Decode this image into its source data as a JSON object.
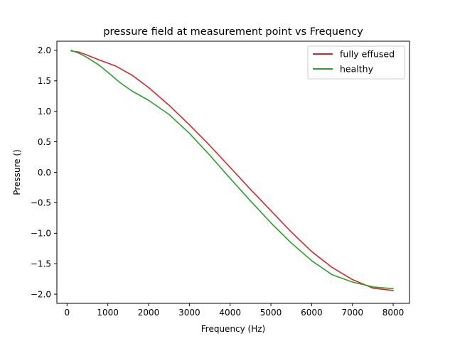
{
  "chart_data": {
    "type": "line",
    "title": "pressure field at measurement point vs Frequency",
    "xlabel": "Frequency (Hz)",
    "ylabel": "Pressure ()",
    "xlim": [
      -250,
      8400
    ],
    "ylim": [
      -2.15,
      2.15
    ],
    "xticks": [
      0,
      1000,
      2000,
      3000,
      4000,
      5000,
      6000,
      7000,
      8000
    ],
    "yticks": [
      -2.0,
      -1.5,
      -1.0,
      -0.5,
      0.0,
      0.5,
      1.0,
      1.5,
      2.0
    ],
    "xtick_labels": [
      "0",
      "1000",
      "2000",
      "3000",
      "4000",
      "5000",
      "6000",
      "7000",
      "8000"
    ],
    "ytick_labels": [
      "−2.0",
      "−1.5",
      "−1.0",
      "−0.5",
      "0.0",
      "0.5",
      "1.0",
      "1.5",
      "2.0"
    ],
    "grid": false,
    "legend_position": "top-right",
    "series": [
      {
        "name": "fully effused",
        "color": "#d62728",
        "x": [
          100,
          300,
          500,
          800,
          1200,
          1600,
          2000,
          2500,
          3000,
          3500,
          4000,
          4500,
          5000,
          5500,
          6000,
          6500,
          7000,
          7500,
          8000
        ],
        "y": [
          1.99,
          1.97,
          1.92,
          1.84,
          1.74,
          1.59,
          1.39,
          1.1,
          0.78,
          0.44,
          0.08,
          -0.28,
          -0.63,
          -0.98,
          -1.3,
          -1.56,
          -1.76,
          -1.9,
          -1.94
        ]
      },
      {
        "name": "healthy",
        "color": "#2ca02c",
        "x": [
          100,
          300,
          500,
          800,
          1000,
          1300,
          1600,
          2000,
          2500,
          3000,
          3500,
          4000,
          4500,
          5000,
          5500,
          6000,
          6500,
          7000,
          7500,
          8000
        ],
        "y": [
          2.0,
          1.95,
          1.88,
          1.75,
          1.64,
          1.47,
          1.33,
          1.18,
          0.95,
          0.64,
          0.28,
          -0.1,
          -0.47,
          -0.83,
          -1.16,
          -1.45,
          -1.68,
          -1.8,
          -1.88,
          -1.91
        ]
      }
    ]
  }
}
